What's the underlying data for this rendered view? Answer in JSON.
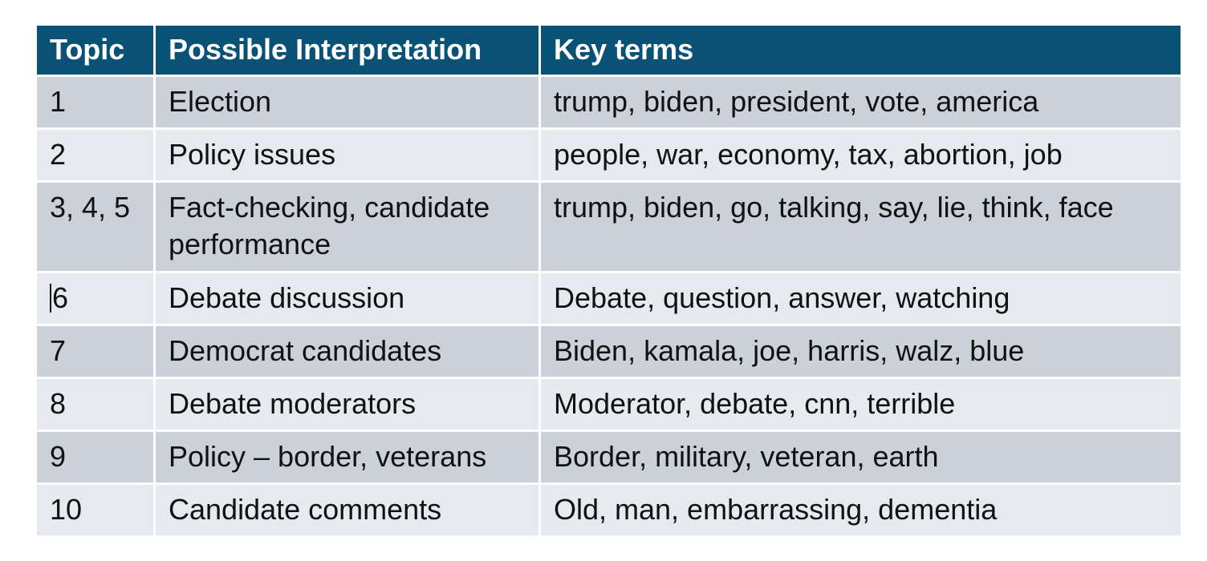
{
  "table": {
    "headers": [
      "Topic",
      "Possible Interpretation",
      "Key terms"
    ],
    "rows": [
      {
        "topic": "1",
        "interpretation": "Election",
        "terms": "trump, biden, president, vote, america"
      },
      {
        "topic": "2",
        "interpretation": "Policy issues",
        "terms": "people, war, economy, tax, abortion, job"
      },
      {
        "topic": "3, 4, 5",
        "interpretation": "Fact-checking, candidate performance",
        "terms": "trump, biden, go, talking, say, lie, think, face"
      },
      {
        "topic": "6",
        "interpretation": "Debate discussion",
        "terms": "Debate, question, answer, watching"
      },
      {
        "topic": "7",
        "interpretation": "Democrat candidates",
        "terms": "Biden, kamala, joe, harris, walz, blue"
      },
      {
        "topic": "8",
        "interpretation": "Debate moderators",
        "terms": "Moderator, debate, cnn, terrible"
      },
      {
        "topic": "9",
        "interpretation": "Policy – border, veterans",
        "terms": "Border, military, veteran, earth"
      },
      {
        "topic": "10",
        "interpretation": "Candidate comments",
        "terms": "Old, man, embarrassing, dementia"
      }
    ]
  },
  "colors": {
    "header_bg": "#0a5275",
    "row_dark": "#cbd1d9",
    "row_light": "#e6e9ee"
  }
}
